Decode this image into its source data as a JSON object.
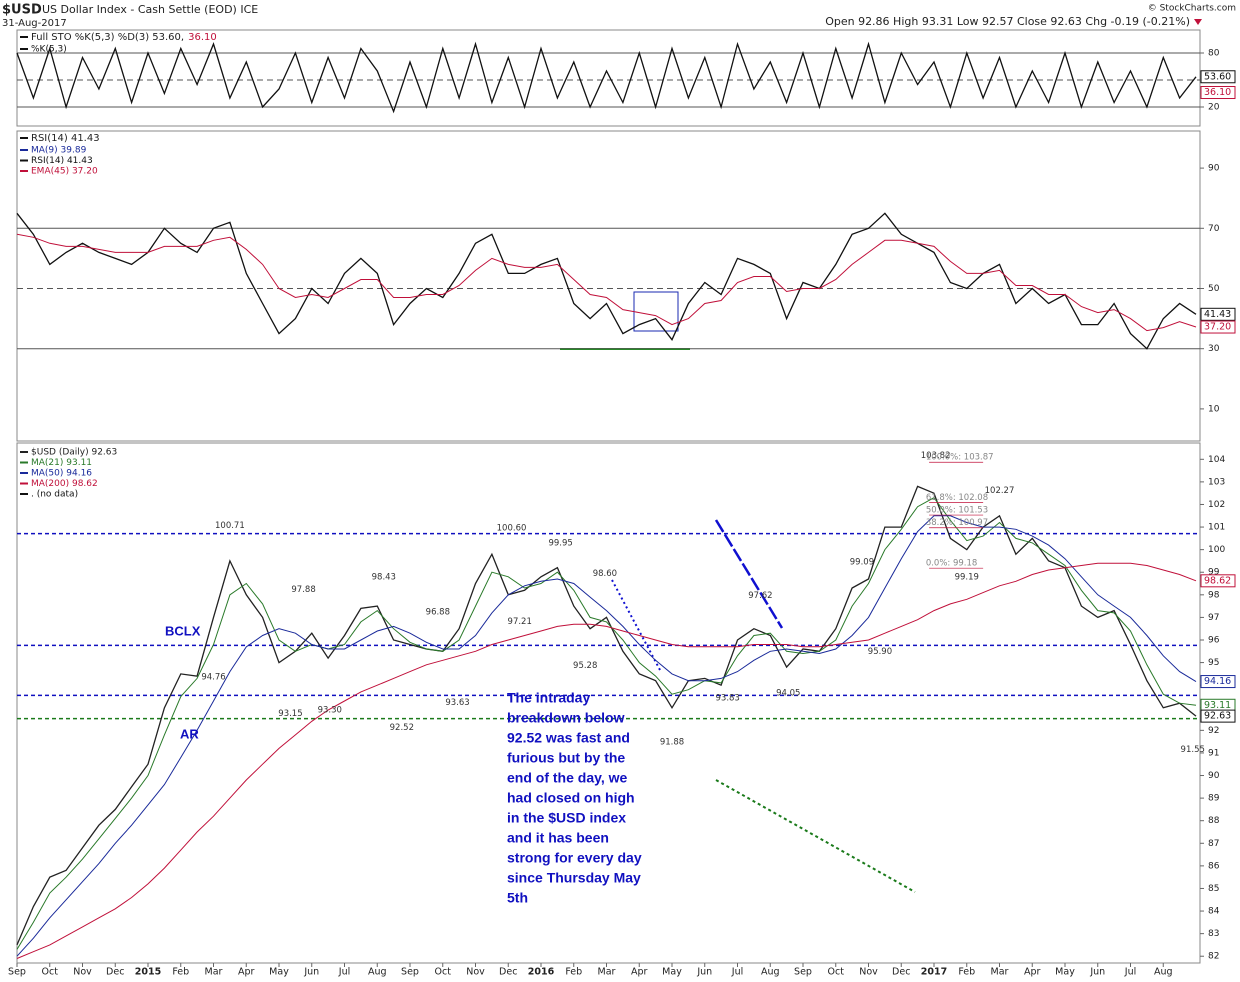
{
  "header": {
    "symbol": "$USD",
    "name": "US Dollar Index - Cash Settle (EOD) ICE",
    "date": "31-Aug-2017",
    "quote": "Open 92.86 High 93.31 Low 92.57 Close 92.63 Chg -0.19 (-0.21%)",
    "credit": "© StockCharts.com"
  },
  "chart_data": [
    {
      "type": "line",
      "title": "Full STO %K(5,3) %D(3) 53.60,",
      "title_d": "36.10",
      "ylim": [
        0,
        100
      ],
      "yticks": [
        20,
        80
      ],
      "reference_lines": [
        {
          "value": 80,
          "style": "solid"
        },
        {
          "value": 50,
          "style": "dashed"
        },
        {
          "value": 20,
          "style": "solid"
        }
      ],
      "series": [
        {
          "name": "%K(5,3)",
          "color": "#111111",
          "values": [
            80,
            30,
            85,
            20,
            75,
            40,
            85,
            25,
            80,
            35,
            85,
            45,
            90,
            30,
            70,
            20,
            40,
            80,
            25,
            75,
            30,
            85,
            60,
            15,
            70,
            20,
            85,
            30,
            90,
            25,
            75,
            20,
            85,
            30,
            70,
            20,
            60,
            25,
            80,
            20,
            85,
            30,
            75,
            20,
            90,
            40,
            70,
            25,
            80,
            20,
            85,
            30,
            90,
            25,
            80,
            45,
            70,
            20,
            80,
            30,
            75,
            20,
            60,
            25,
            80,
            20,
            70,
            25,
            60,
            20,
            75,
            30,
            53.6
          ]
        }
      ],
      "last_tags": [
        {
          "value": 53.6,
          "label": "53.60",
          "color": "#111111"
        },
        {
          "value": 36.1,
          "label": "36.10",
          "color": "#c0103a"
        }
      ]
    },
    {
      "type": "line",
      "title": "RSI(14) 41.43",
      "ylim": [
        0,
        100
      ],
      "yticks": [
        10,
        30,
        50,
        70,
        90
      ],
      "reference_lines": [
        {
          "value": 70,
          "style": "solid"
        },
        {
          "value": 50,
          "style": "dashed"
        },
        {
          "value": 30,
          "style": "solid"
        }
      ],
      "legend_extra": [
        {
          "name": "MA(9) 39.89",
          "color": "#1a2a9a"
        }
      ],
      "series": [
        {
          "name": "RSI(14) 41.43",
          "color": "#111111",
          "values": [
            75,
            68,
            58,
            62,
            65,
            62,
            60,
            58,
            62,
            70,
            65,
            62,
            70,
            72,
            55,
            45,
            35,
            40,
            50,
            45,
            55,
            60,
            55,
            38,
            45,
            50,
            47,
            55,
            65,
            68,
            55,
            55,
            58,
            60,
            45,
            40,
            45,
            35,
            38,
            40,
            33,
            45,
            52,
            48,
            60,
            58,
            55,
            40,
            52,
            50,
            58,
            68,
            70,
            75,
            68,
            65,
            62,
            52,
            50,
            55,
            58,
            45,
            50,
            45,
            48,
            38,
            38,
            45,
            35,
            30,
            40,
            45,
            41.43
          ]
        },
        {
          "name": "EMA(45) 37.20",
          "color": "#c0103a",
          "values": [
            68,
            67,
            65,
            64,
            64,
            63,
            62,
            62,
            62,
            64,
            64,
            64,
            66,
            67,
            63,
            58,
            50,
            47,
            48,
            47,
            50,
            53,
            53,
            47,
            47,
            48,
            48,
            51,
            56,
            60,
            58,
            57,
            57,
            58,
            53,
            48,
            47,
            43,
            42,
            41,
            38,
            40,
            45,
            46,
            52,
            54,
            54,
            49,
            50,
            50,
            53,
            58,
            62,
            66,
            66,
            65,
            64,
            59,
            55,
            55,
            56,
            51,
            51,
            48,
            48,
            44,
            42,
            43,
            40,
            36,
            37,
            39,
            37.2
          ]
        }
      ],
      "last_tags": [
        {
          "value": 41.43,
          "label": "41.43",
          "color": "#111111"
        },
        {
          "value": 37.2,
          "label": "37.20",
          "color": "#c0103a"
        }
      ]
    },
    {
      "type": "line",
      "ylim": [
        81.7,
        104.5
      ],
      "yticks": [
        82,
        83,
        84,
        85,
        86,
        87,
        88,
        89,
        90,
        91,
        92,
        93,
        94,
        95,
        96,
        97,
        98,
        99,
        100,
        101,
        102,
        103,
        104
      ],
      "categories": [
        "Sep",
        null,
        "Oct",
        null,
        "Nov",
        null,
        "Dec",
        null,
        "2015",
        null,
        "Feb",
        null,
        "Mar",
        null,
        "Apr",
        null,
        "May",
        null,
        "Jun",
        null,
        "Jul",
        null,
        "Aug",
        null,
        "Sep",
        null,
        "Oct",
        null,
        "Nov",
        null,
        "Dec",
        null,
        "2016",
        null,
        "Feb",
        null,
        "Mar",
        null,
        "Apr",
        null,
        "May",
        null,
        "Jun",
        null,
        "Jul",
        null,
        "Aug",
        null,
        "Sep",
        null,
        "Oct",
        null,
        "Nov",
        null,
        "Dec",
        null,
        "2017",
        null,
        "Feb",
        null,
        "Mar",
        null,
        "Apr",
        null,
        "May",
        null,
        "Jun",
        null,
        "Jul",
        null,
        "Aug",
        null,
        null
      ],
      "series": [
        {
          "name": "$USD (Daily) 92.63",
          "color": "#222222",
          "values": [
            82.5,
            84.2,
            85.5,
            85.8,
            86.8,
            87.8,
            88.5,
            89.5,
            90.5,
            93,
            94.5,
            94.4,
            97,
            99.5,
            98,
            97,
            95,
            95.5,
            96.3,
            95.2,
            96.2,
            97.4,
            97.5,
            96,
            95.8,
            95.6,
            95.5,
            96.5,
            98.5,
            99.8,
            98,
            98.2,
            98.8,
            99.2,
            97.5,
            96.5,
            97,
            95.5,
            94.5,
            94.2,
            93,
            94.2,
            94.3,
            94,
            96,
            96.5,
            96.2,
            94.8,
            95.6,
            95.5,
            96.5,
            98.3,
            98.7,
            101,
            101,
            102.8,
            102.5,
            100.5,
            100,
            101,
            101.5,
            99.8,
            100.5,
            99.5,
            99.2,
            97.5,
            97,
            97.3,
            95.8,
            94.2,
            93,
            93.2,
            92.63
          ]
        },
        {
          "name": "MA(21) 93.11",
          "color": "#2a7a2a",
          "values": [
            82.3,
            83.5,
            84.8,
            85.5,
            86.3,
            87.2,
            88.1,
            89,
            90,
            91.8,
            93.5,
            94.3,
            95.8,
            98,
            98.5,
            97.6,
            96,
            95.5,
            95.8,
            95.6,
            95.8,
            96.8,
            97.3,
            96.5,
            95.9,
            95.6,
            95.5,
            96,
            97.5,
            99,
            98.8,
            98.3,
            98.5,
            99,
            98.2,
            97,
            96.8,
            96,
            95,
            94.4,
            93.6,
            93.8,
            94.2,
            94.1,
            95.3,
            96.2,
            96.3,
            95.5,
            95.4,
            95.5,
            96,
            97.5,
            98.5,
            100,
            100.9,
            101.9,
            102.3,
            101.3,
            100.4,
            100.6,
            101.2,
            100.5,
            100.3,
            99.8,
            99.3,
            98.2,
            97.3,
            97.2,
            96.4,
            94.9,
            93.6,
            93.2,
            93.11
          ]
        },
        {
          "name": "MA(50) 94.16",
          "color": "#1a2a9a",
          "values": [
            82,
            82.8,
            83.7,
            84.5,
            85.3,
            86.1,
            87,
            87.8,
            88.7,
            89.6,
            90.8,
            92,
            93.3,
            94.6,
            95.7,
            96.2,
            96.5,
            96.3,
            95.8,
            95.6,
            95.6,
            96,
            96.4,
            96.6,
            96.3,
            95.9,
            95.6,
            95.6,
            96.2,
            97.2,
            98,
            98.4,
            98.6,
            98.7,
            98.5,
            97.9,
            97.3,
            96.6,
            95.8,
            95.1,
            94.5,
            94.2,
            94.2,
            94.3,
            94.6,
            95.1,
            95.5,
            95.6,
            95.5,
            95.4,
            95.6,
            96.2,
            97,
            98.3,
            99.6,
            100.8,
            101.5,
            101.5,
            101.2,
            101,
            101,
            100.9,
            100.6,
            100.2,
            99.6,
            98.8,
            98,
            97.5,
            97,
            96.2,
            95.3,
            94.6,
            94.16
          ]
        },
        {
          "name": "MA(200) 98.62",
          "color": "#c0103a",
          "values": [
            81.9,
            82.2,
            82.5,
            82.9,
            83.3,
            83.7,
            84.1,
            84.6,
            85.2,
            85.9,
            86.7,
            87.5,
            88.2,
            89,
            89.8,
            90.5,
            91.2,
            91.8,
            92.4,
            92.9,
            93.3,
            93.7,
            94,
            94.3,
            94.6,
            94.9,
            95.1,
            95.3,
            95.5,
            95.8,
            96,
            96.2,
            96.4,
            96.6,
            96.7,
            96.7,
            96.6,
            96.4,
            96.2,
            96,
            95.8,
            95.7,
            95.7,
            95.7,
            95.7,
            95.8,
            95.8,
            95.8,
            95.7,
            95.7,
            95.8,
            95.9,
            96,
            96.3,
            96.6,
            96.9,
            97.3,
            97.6,
            97.8,
            98.1,
            98.4,
            98.6,
            98.9,
            99.1,
            99.2,
            99.3,
            99.4,
            99.4,
            99.4,
            99.3,
            99.1,
            98.9,
            98.62
          ]
        }
      ],
      "legend_extra": [
        {
          "name": ". (no data)",
          "color": "#111111"
        }
      ],
      "levels": [
        {
          "value": 100.71,
          "color": "#1010c0"
        },
        {
          "value": 95.76,
          "color": "#1010c0"
        },
        {
          "value": 93.55,
          "color": "#1010c0"
        },
        {
          "value": 92.52,
          "color": "#1a7a1a"
        }
      ],
      "price_labels": [
        {
          "value": 100.71,
          "label": "100.71",
          "x": 13
        },
        {
          "value": 94.76,
          "label": "94.76",
          "x": 12
        },
        {
          "value": 97.88,
          "label": "97.88",
          "x": 17.5
        },
        {
          "value": 93.15,
          "label": "93.15",
          "x": 16.7
        },
        {
          "value": 93.3,
          "label": "93.30",
          "x": 19.1
        },
        {
          "value": 98.43,
          "label": "98.43",
          "x": 22.4
        },
        {
          "value": 92.52,
          "label": "92.52",
          "x": 23.5
        },
        {
          "value": 96.88,
          "label": "96.88",
          "x": 25.7
        },
        {
          "value": 93.63,
          "label": "93.63",
          "x": 26.9
        },
        {
          "value": 100.6,
          "label": "100.60",
          "x": 30.2
        },
        {
          "value": 97.21,
          "label": "97.21",
          "x": 30.7
        },
        {
          "value": 99.95,
          "label": "99.95",
          "x": 33.2
        },
        {
          "value": 95.28,
          "label": "95.28",
          "x": 34.7
        },
        {
          "value": 98.6,
          "label": "98.60",
          "x": 35.9
        },
        {
          "value": 91.88,
          "label": "91.88",
          "x": 40
        },
        {
          "value": 93.83,
          "label": "93.83",
          "x": 43.4
        },
        {
          "value": 97.62,
          "label": "97.62",
          "x": 45.4
        },
        {
          "value": 94.05,
          "label": "94.05",
          "x": 47.1
        },
        {
          "value": 99.09,
          "label": "99.09",
          "x": 51.6
        },
        {
          "value": 95.9,
          "label": "95.90",
          "x": 52.7
        },
        {
          "value": 103.82,
          "label": "103.82",
          "x": 56.1
        },
        {
          "value": 99.19,
          "label": "99.19",
          "x": 58
        },
        {
          "value": 102.27,
          "label": "102.27",
          "x": 60
        },
        {
          "value": 91.55,
          "label": "91.55",
          "x": 71.8
        }
      ],
      "fib": [
        {
          "value": 103.87,
          "label": "100.0%: 103.87"
        },
        {
          "value": 102.08,
          "label": "61.8%: 102.08"
        },
        {
          "value": 101.53,
          "label": "50.0%: 101.53"
        },
        {
          "value": 100.97,
          "label": "38.2%: 100.97"
        },
        {
          "value": 99.18,
          "label": "0.0%: 99.18"
        }
      ],
      "annotations": [
        {
          "text": "BCLX"
        },
        {
          "text": "AR"
        }
      ],
      "note_lines": [
        "The intraday",
        "breakdown below",
        "92.52 was fast and",
        "furious but by the",
        "end of the day, we",
        "had closed on high",
        "in the $USD index",
        "and it has been",
        "strong for every day",
        "since Thursday May",
        "5th"
      ],
      "last_tags": [
        {
          "value": 98.62,
          "label": "98.62",
          "color": "#c0103a"
        },
        {
          "value": 94.16,
          "label": "94.16",
          "color": "#1a2a9a"
        },
        {
          "value": 93.11,
          "label": "93.11",
          "color": "#2a7a2a"
        },
        {
          "value": 92.63,
          "label": "92.63",
          "color": "#111111"
        }
      ]
    }
  ]
}
